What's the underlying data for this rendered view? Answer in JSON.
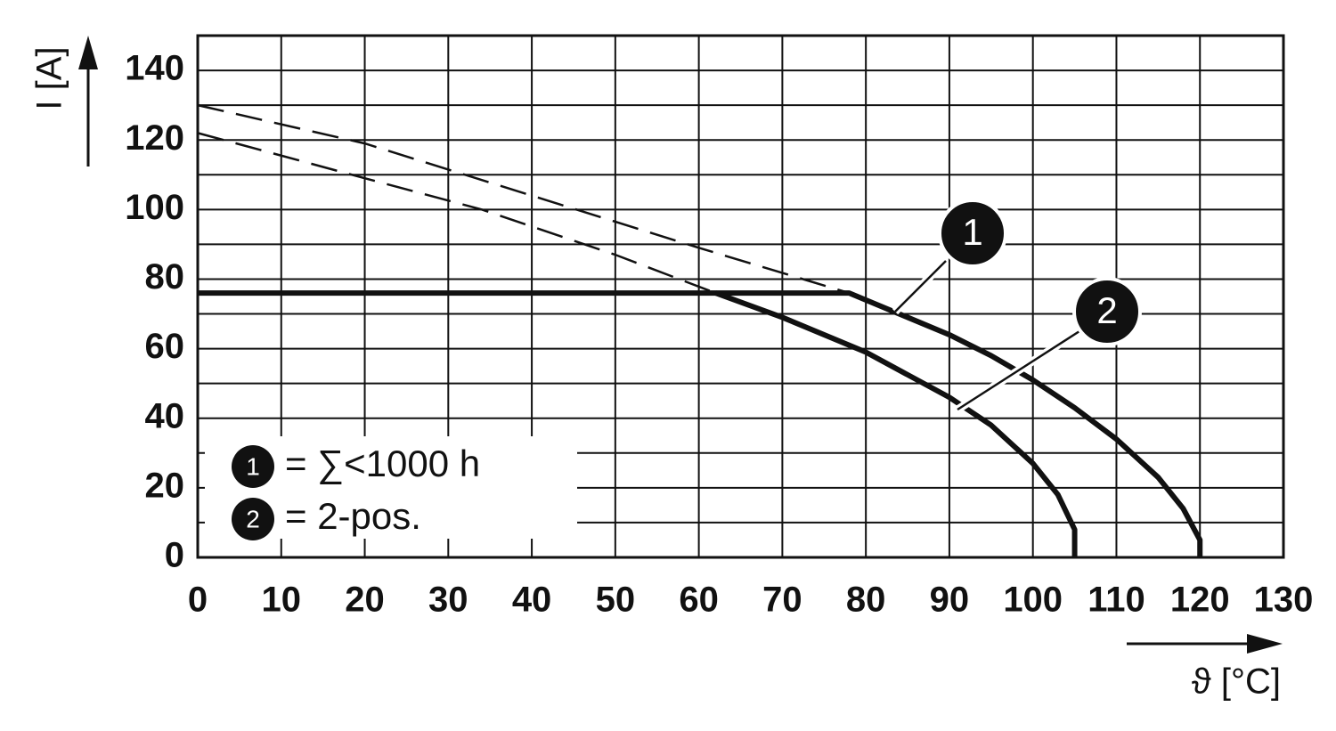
{
  "chart_data": {
    "type": "line",
    "y_label": "I [A]",
    "x_label": "ϑ [°C]",
    "xlim": [
      0,
      130
    ],
    "ylim": [
      0,
      150
    ],
    "xticks": [
      0,
      10,
      20,
      30,
      40,
      50,
      60,
      70,
      80,
      90,
      100,
      110,
      120,
      130
    ],
    "yticks": [
      0,
      20,
      40,
      60,
      80,
      100,
      120,
      140
    ],
    "ygrid": [
      0,
      10,
      20,
      30,
      40,
      50,
      60,
      70,
      80,
      90,
      100,
      110,
      120,
      130,
      140,
      150
    ],
    "grid": true,
    "color": "#111111",
    "series": [
      {
        "name": "1",
        "legend_text": "= ∑<1000 h",
        "x": [
          0,
          78,
          85,
          90,
          95,
          100,
          105,
          110,
          115,
          118,
          120,
          120
        ],
        "values": [
          76,
          76,
          69,
          64,
          58,
          51,
          43,
          34,
          23,
          14,
          5,
          0
        ],
        "extrapolated": {
          "x": [
            0,
            20,
            40,
            60,
            78
          ],
          "values": [
            130,
            119,
            104,
            89,
            76
          ]
        }
      },
      {
        "name": "2",
        "legend_text": "= 2-pos.",
        "x": [
          62,
          70,
          80,
          90,
          95,
          100,
          103,
          105,
          105
        ],
        "values": [
          76,
          69,
          59,
          46,
          38,
          27,
          18,
          8,
          0
        ],
        "extrapolated": {
          "x": [
            0,
            20,
            34,
            50,
            62
          ],
          "values": [
            122,
            109,
            100,
            87,
            76
          ]
        }
      }
    ]
  }
}
